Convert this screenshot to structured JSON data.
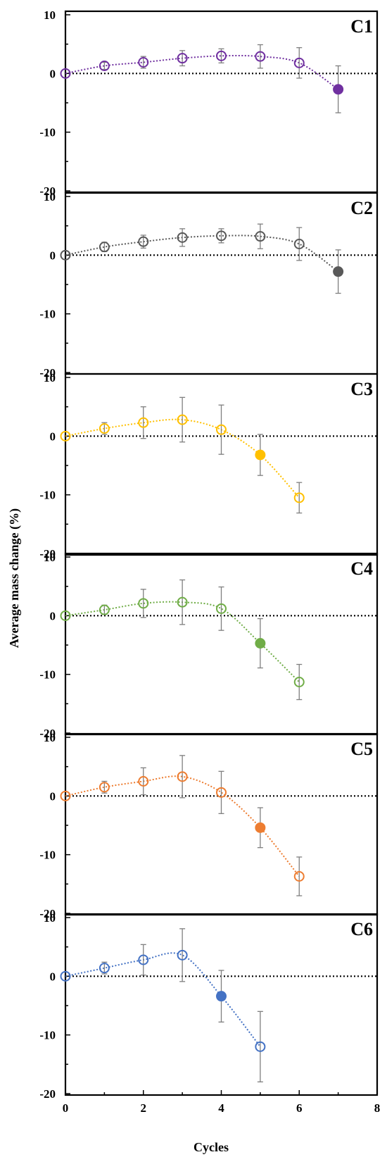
{
  "chart_data": {
    "type": "scatter",
    "xlabel": "Cycles",
    "ylabel": "Average mass change (%)",
    "xlim": [
      0,
      8
    ],
    "ylim": [
      -20,
      10
    ],
    "x_ticks": [
      "0",
      "2",
      "4",
      "6",
      "8"
    ],
    "y_ticks": [
      "10",
      "0",
      "-10",
      "-20"
    ],
    "zero_line": "dotted black at y = 0",
    "error_bars": true,
    "trend_lines": "dotted smooth curve in series color",
    "panels": [
      {
        "label": "C1",
        "color": "#7030a0",
        "points": [
          {
            "x": 0,
            "y": 0,
            "err": 0,
            "filled": false
          },
          {
            "x": 1,
            "y": 1.3,
            "err": 0.6,
            "filled": false
          },
          {
            "x": 2,
            "y": 1.9,
            "err": 1.0,
            "filled": false
          },
          {
            "x": 3,
            "y": 2.6,
            "err": 1.3,
            "filled": false
          },
          {
            "x": 4,
            "y": 3.0,
            "err": 1.2,
            "filled": false
          },
          {
            "x": 5,
            "y": 2.9,
            "err": 2.0,
            "filled": false
          },
          {
            "x": 6,
            "y": 1.8,
            "err": 2.6,
            "filled": false
          },
          {
            "x": 7,
            "y": -2.7,
            "err": 4.0,
            "filled": true
          }
        ]
      },
      {
        "label": "C2",
        "color": "#595959",
        "points": [
          {
            "x": 0,
            "y": 0,
            "err": 0,
            "filled": false
          },
          {
            "x": 1,
            "y": 1.4,
            "err": 0.8,
            "filled": false
          },
          {
            "x": 2,
            "y": 2.3,
            "err": 1.1,
            "filled": false
          },
          {
            "x": 3,
            "y": 3.0,
            "err": 1.5,
            "filled": false
          },
          {
            "x": 4,
            "y": 3.3,
            "err": 1.2,
            "filled": false
          },
          {
            "x": 5,
            "y": 3.2,
            "err": 2.1,
            "filled": false
          },
          {
            "x": 6,
            "y": 1.9,
            "err": 2.8,
            "filled": false
          },
          {
            "x": 7,
            "y": -2.8,
            "err": 3.7,
            "filled": true
          }
        ]
      },
      {
        "label": "C3",
        "color": "#ffc000",
        "points": [
          {
            "x": 0,
            "y": 0,
            "err": 0,
            "filled": false
          },
          {
            "x": 1,
            "y": 1.3,
            "err": 1.0,
            "filled": false
          },
          {
            "x": 2,
            "y": 2.3,
            "err": 2.7,
            "filled": false
          },
          {
            "x": 3,
            "y": 2.8,
            "err": 3.8,
            "filled": false
          },
          {
            "x": 4,
            "y": 1.1,
            "err": 4.2,
            "filled": false
          },
          {
            "x": 5,
            "y": -3.2,
            "err": 3.5,
            "filled": true
          },
          {
            "x": 6,
            "y": -10.5,
            "err": 2.6,
            "filled": false
          }
        ]
      },
      {
        "label": "C4",
        "color": "#70ad47",
        "points": [
          {
            "x": 0,
            "y": 0,
            "err": 0,
            "filled": false
          },
          {
            "x": 1,
            "y": 1.0,
            "err": 0.8,
            "filled": false
          },
          {
            "x": 2,
            "y": 2.1,
            "err": 2.4,
            "filled": false
          },
          {
            "x": 3,
            "y": 2.3,
            "err": 3.8,
            "filled": false
          },
          {
            "x": 4,
            "y": 1.2,
            "err": 3.7,
            "filled": false
          },
          {
            "x": 5,
            "y": -4.7,
            "err": 4.2,
            "filled": true
          },
          {
            "x": 6,
            "y": -11.3,
            "err": 3.0,
            "filled": false
          }
        ]
      },
      {
        "label": "C5",
        "color": "#ed7d31",
        "points": [
          {
            "x": 0,
            "y": 0,
            "err": 0,
            "filled": false
          },
          {
            "x": 1,
            "y": 1.5,
            "err": 1.0,
            "filled": false
          },
          {
            "x": 2,
            "y": 2.5,
            "err": 2.3,
            "filled": false
          },
          {
            "x": 3,
            "y": 3.3,
            "err": 3.6,
            "filled": false
          },
          {
            "x": 4,
            "y": 0.6,
            "err": 3.6,
            "filled": false
          },
          {
            "x": 5,
            "y": -5.4,
            "err": 3.4,
            "filled": true
          },
          {
            "x": 6,
            "y": -13.7,
            "err": 3.3,
            "filled": false
          }
        ]
      },
      {
        "label": "C6",
        "color": "#4472c4",
        "points": [
          {
            "x": 0,
            "y": 0,
            "err": 0,
            "filled": false
          },
          {
            "x": 1,
            "y": 1.4,
            "err": 1.0,
            "filled": false
          },
          {
            "x": 2,
            "y": 2.8,
            "err": 2.6,
            "filled": false
          },
          {
            "x": 3,
            "y": 3.6,
            "err": 4.5,
            "filled": false
          },
          {
            "x": 4,
            "y": -3.4,
            "err": 4.4,
            "filled": true
          },
          {
            "x": 5,
            "y": -12.0,
            "err": 6.0,
            "filled": false
          }
        ]
      }
    ]
  }
}
